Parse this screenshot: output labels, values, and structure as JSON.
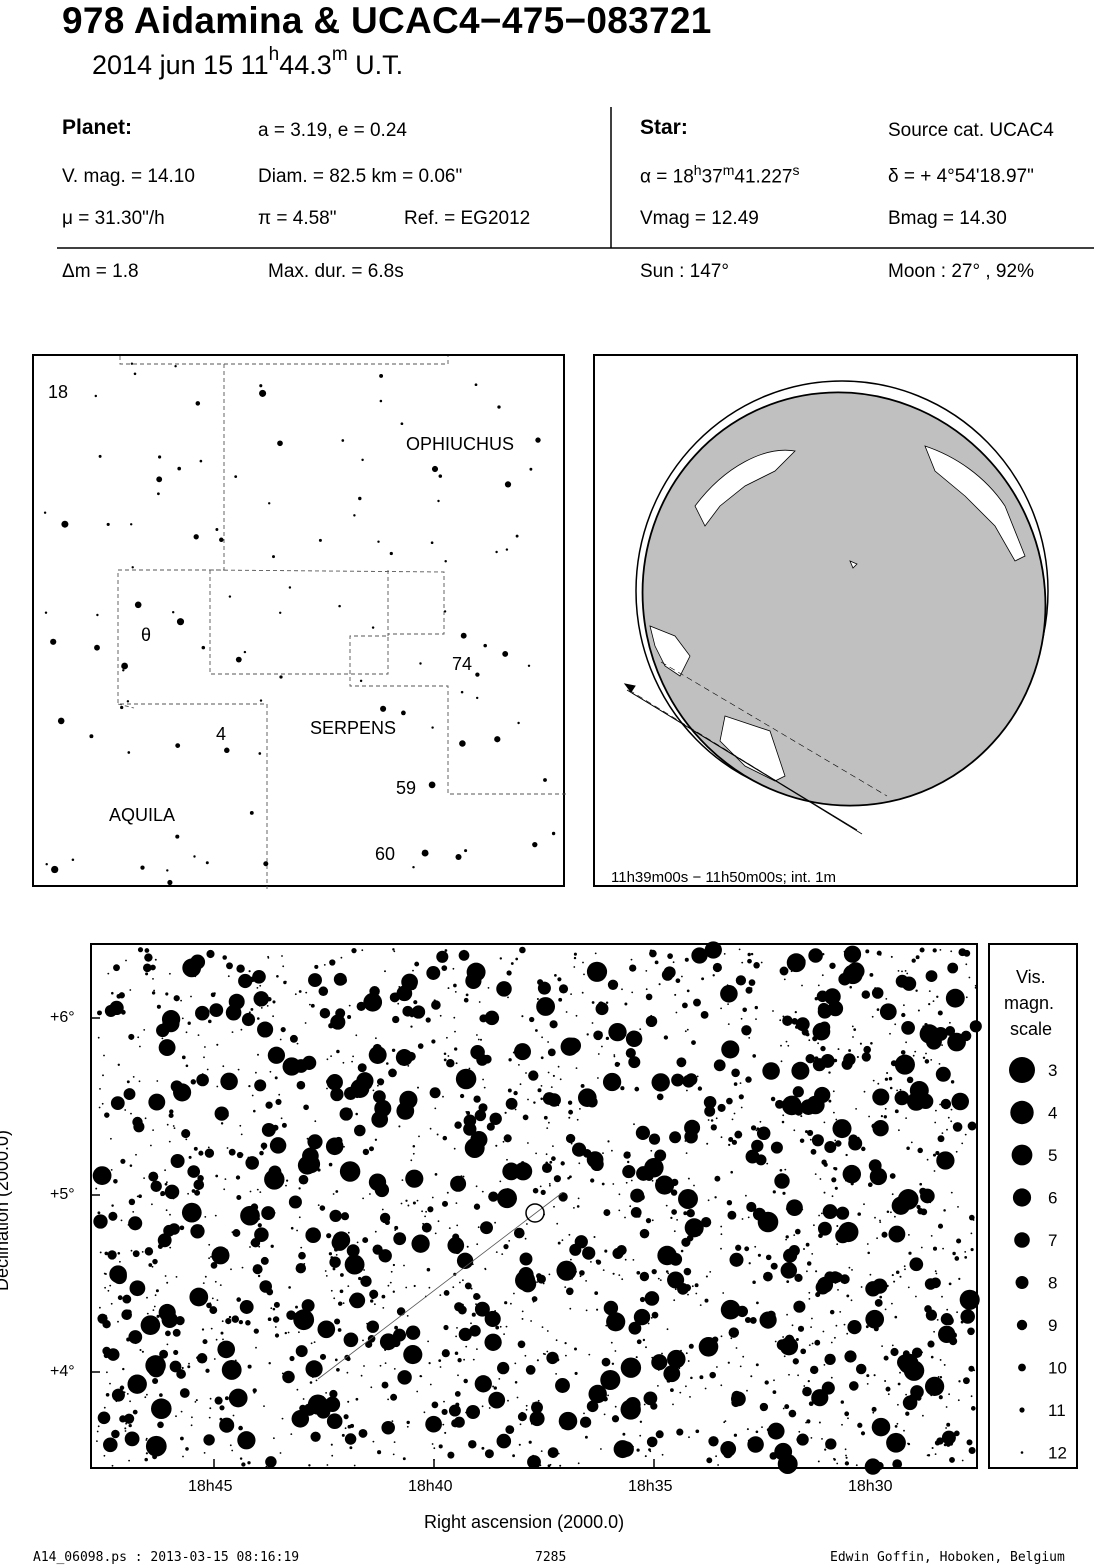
{
  "header": {
    "title": "978 Aidamina  &  UCAC4−475−083721",
    "date_prefix": "2014 jun 15  11",
    "time_h": "h",
    "time_mid": "44.3",
    "time_m": "m",
    "time_suffix": " U.T."
  },
  "planet": {
    "heading": "Planet:",
    "orbit": "a = 3.19, e = 0.24",
    "vmag": "V. mag. = 14.10",
    "diam": "Diam. = 82.5 km = 0.06\"",
    "mu": "μ =  31.30\"/h",
    "pi": "π =  4.58\"",
    "ref": "Ref. = EG2012",
    "dm": "Δm = 1.8",
    "maxdur": "Max. dur. = 6.8s"
  },
  "star": {
    "heading": "Star:",
    "source": "Source cat.  UCAC4",
    "alpha_prefix": "α = 18",
    "alpha_h": "h",
    "alpha_mid": "37",
    "alpha_m": "m",
    "alpha_sec": "41.227",
    "alpha_s": "s",
    "delta": "δ = + 4°54'18.97\"",
    "vmag": "Vmag = 12.49",
    "bmag": "Bmag = 14.30",
    "sun": "Sun : 147°",
    "moon": "Moon :  27° , 92%"
  },
  "constellation_map": {
    "labels": [
      "OPHIUCHUS",
      "SERPENS",
      "AQUILA"
    ],
    "star_labels": [
      "18",
      "θ",
      "74",
      "4",
      "59",
      "60"
    ]
  },
  "globe": {
    "caption": "11h39m00s − 11h50m00s; int.  1m"
  },
  "chart_data": {
    "type": "scatter",
    "xlabel": "Right ascension (2000.0)",
    "ylabel": "Declination (2000.0)",
    "x_ticks": [
      "18h45",
      "18h40",
      "18h35",
      "18h30"
    ],
    "y_ticks": [
      "+6°",
      "+5°",
      "+4°"
    ],
    "target_star": {
      "ra": "18h37m41.227s",
      "dec": "+4°54'18.97\""
    },
    "legend": {
      "title": [
        "Vis.",
        "magn.",
        "scale"
      ],
      "magnitudes": [
        3,
        4,
        5,
        6,
        7,
        8,
        9,
        10,
        11,
        12
      ]
    }
  },
  "footer": {
    "file": "A14_06098.ps : 2013-03-15 08:16:19",
    "number": "7285",
    "author": "Edwin Goffin, Hoboken, Belgium"
  }
}
